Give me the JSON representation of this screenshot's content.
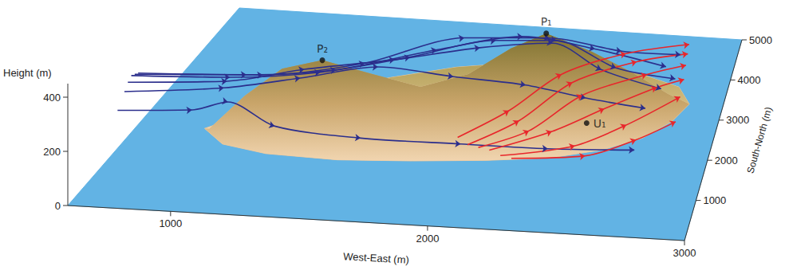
{
  "chart_data": {
    "type": "line3d",
    "xlabel": "West-East (m)",
    "ylabel": "South-North (m)",
    "zlabel": "Height (m)",
    "xlim": [
      600,
      3000
    ],
    "ylim": [
      0,
      5000
    ],
    "zlim": [
      0,
      450
    ],
    "xticks": [
      1000,
      2000,
      3000
    ],
    "yticks": [
      1000,
      2000,
      3000,
      4000,
      5000
    ],
    "zticks": [
      0,
      200,
      400
    ],
    "grid": false,
    "terrain": {
      "south_coast": [
        [
          880,
          2050
        ],
        [
          1000,
          1700
        ],
        [
          1200,
          1530
        ],
        [
          1500,
          1480
        ],
        [
          1800,
          1560
        ],
        [
          2100,
          1680
        ],
        [
          2350,
          1830
        ],
        [
          2550,
          2100
        ],
        [
          2700,
          2450
        ],
        [
          2800,
          2900
        ],
        [
          2850,
          3350
        ]
      ],
      "north_coast": [
        [
          2780,
          3750
        ],
        [
          2580,
          4020
        ],
        [
          2320,
          4150
        ],
        [
          2020,
          4100
        ],
        [
          1760,
          3900
        ],
        [
          1500,
          3550
        ],
        [
          1260,
          3100
        ],
        [
          1050,
          2600
        ]
      ],
      "ridge": [
        [
          900,
          2050,
          0
        ],
        [
          1050,
          2050,
          130
        ],
        [
          1200,
          2100,
          230
        ],
        [
          1370,
          2100,
          270
        ],
        [
          1550,
          2250,
          210
        ],
        [
          1750,
          2450,
          140
        ],
        [
          1950,
          2500,
          190
        ],
        [
          2130,
          2530,
          290
        ],
        [
          2280,
          2550,
          350
        ],
        [
          2450,
          2900,
          240
        ],
        [
          2620,
          3150,
          130
        ],
        [
          2760,
          3300,
          40
        ],
        [
          2850,
          3350,
          0
        ]
      ]
    },
    "points": [
      {
        "label": "P₁",
        "x": 2280,
        "y": 2550,
        "z": 350
      },
      {
        "label": "P₂",
        "x": 1370,
        "y": 2100,
        "z": 270
      },
      {
        "label": "U₁",
        "x": 2450,
        "y": 2600,
        "z": 20
      }
    ],
    "series": [
      {
        "color": "#2b2e8c",
        "marker": "arrow",
        "values": [
          [
            600,
            1450,
            140
          ],
          [
            900,
            1500,
            150
          ],
          [
            1050,
            1480,
            190
          ],
          [
            1250,
            1420,
            120
          ],
          [
            1600,
            1450,
            90
          ],
          [
            2000,
            1580,
            70
          ],
          [
            2350,
            1720,
            50
          ],
          [
            2700,
            1880,
            40
          ]
        ]
      },
      {
        "color": "#2b2e8c",
        "marker": "arrow",
        "values": [
          [
            600,
            1650,
            180
          ],
          [
            1000,
            1750,
            200
          ],
          [
            1300,
            1900,
            230
          ],
          [
            1600,
            2150,
            250
          ],
          [
            1900,
            2350,
            200
          ],
          [
            2200,
            2450,
            170
          ],
          [
            2450,
            2550,
            120
          ],
          [
            2700,
            2650,
            80
          ]
        ]
      },
      {
        "color": "#2b2e8c",
        "marker": "arrow",
        "values": [
          [
            600,
            1750,
            200
          ],
          [
            1000,
            1850,
            210
          ],
          [
            1300,
            2050,
            240
          ],
          [
            1650,
            2350,
            250
          ],
          [
            2000,
            2500,
            290
          ],
          [
            2300,
            2650,
            300
          ],
          [
            2500,
            2800,
            190
          ],
          [
            2750,
            2950,
            110
          ]
        ]
      },
      {
        "color": "#2b2e8c",
        "marker": "arrow",
        "values": [
          [
            600,
            1850,
            210
          ],
          [
            1000,
            1950,
            210
          ],
          [
            1350,
            2200,
            210
          ],
          [
            1700,
            2500,
            240
          ],
          [
            2050,
            2700,
            290
          ],
          [
            2300,
            2850,
            280
          ],
          [
            2550,
            3000,
            170
          ],
          [
            2800,
            3150,
            120
          ]
        ]
      },
      {
        "color": "#2b2e8c",
        "marker": "arrow",
        "values": [
          [
            600,
            1950,
            200
          ],
          [
            1050,
            2100,
            200
          ],
          [
            1400,
            2350,
            200
          ],
          [
            1800,
            2650,
            250
          ],
          [
            2150,
            2900,
            280
          ],
          [
            2450,
            3100,
            220
          ],
          [
            2750,
            3300,
            140
          ]
        ]
      },
      {
        "color": "#2b2e8c",
        "marker": "arrow",
        "values": [
          [
            600,
            2050,
            190
          ],
          [
            1100,
            2250,
            180
          ],
          [
            1500,
            2550,
            200
          ],
          [
            1900,
            2850,
            270
          ],
          [
            2250,
            3100,
            250
          ],
          [
            2550,
            3350,
            180
          ],
          [
            2800,
            3550,
            150
          ]
        ]
      },
      {
        "color": "#e8262b",
        "marker": "arrow",
        "values": [
          [
            1950,
            2000,
            30
          ],
          [
            2150,
            2200,
            110
          ],
          [
            2350,
            2500,
            210
          ],
          [
            2600,
            2900,
            240
          ],
          [
            2850,
            3350,
            220
          ]
        ]
      },
      {
        "color": "#e8262b",
        "marker": "arrow",
        "values": [
          [
            2000,
            1900,
            20
          ],
          [
            2200,
            2100,
            90
          ],
          [
            2400,
            2450,
            190
          ],
          [
            2650,
            2850,
            220
          ],
          [
            2850,
            3250,
            200
          ]
        ]
      },
      {
        "color": "#e8262b",
        "marker": "arrow",
        "values": [
          [
            2050,
            1850,
            20
          ],
          [
            2250,
            2000,
            70
          ],
          [
            2450,
            2350,
            160
          ],
          [
            2700,
            2750,
            190
          ],
          [
            2850,
            3100,
            180
          ]
        ]
      },
      {
        "color": "#e8262b",
        "marker": "arrow",
        "values": [
          [
            2100,
            1800,
            20
          ],
          [
            2350,
            1950,
            80
          ],
          [
            2550,
            2250,
            130
          ],
          [
            2750,
            2650,
            160
          ],
          [
            2850,
            2950,
            150
          ]
        ]
      },
      {
        "color": "#e8262b",
        "marker": "arrow",
        "values": [
          [
            2150,
            1750,
            10
          ],
          [
            2450,
            1900,
            40
          ],
          [
            2650,
            2150,
            90
          ],
          [
            2850,
            2650,
            130
          ]
        ]
      },
      {
        "color": "#e8262b",
        "marker": "arrow",
        "values": [
          [
            2200,
            1700,
            10
          ],
          [
            2500,
            1800,
            20
          ],
          [
            2700,
            2000,
            60
          ],
          [
            2850,
            2300,
            90
          ]
        ]
      }
    ]
  }
}
